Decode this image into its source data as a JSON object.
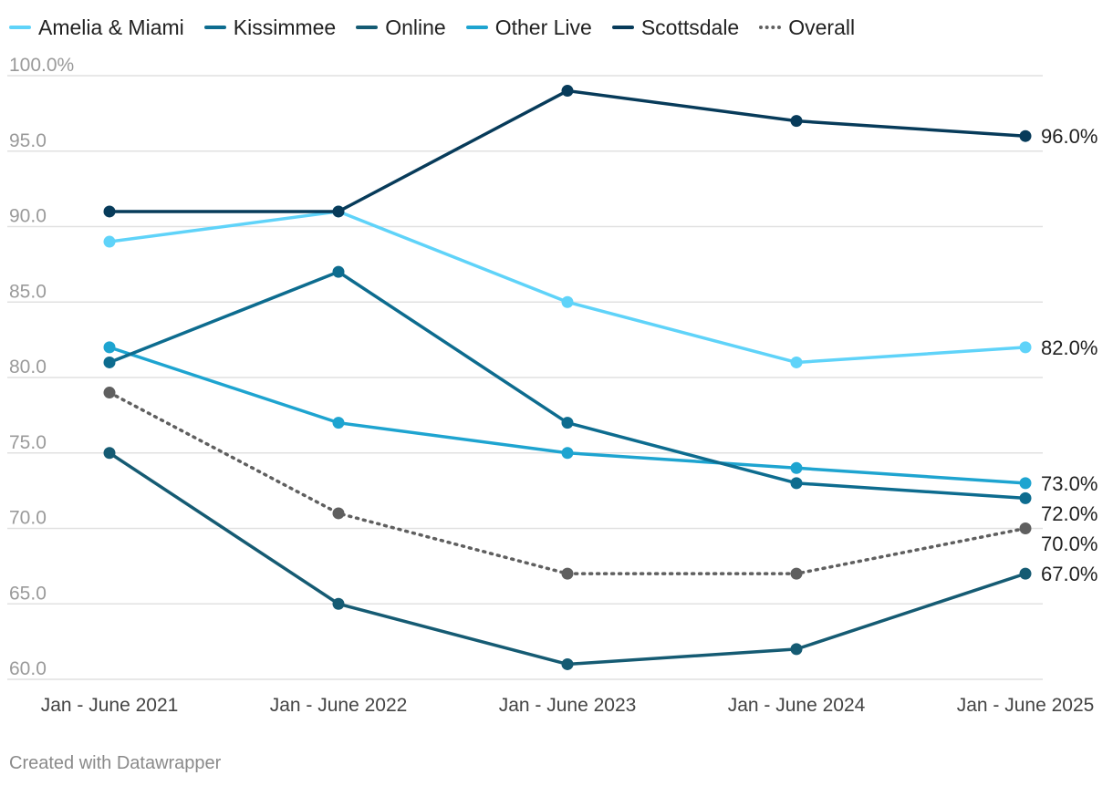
{
  "chart_data": {
    "type": "line",
    "x": [
      "Jan - June 2021",
      "Jan - June 2022",
      "Jan - June 2023",
      "Jan - June 2024",
      "Jan - June 2025"
    ],
    "ylim": [
      60,
      100
    ],
    "yticks": [
      "100.0%",
      "95.0",
      "90.0",
      "85.0",
      "80.0",
      "75.0",
      "70.0",
      "65.0",
      "60.0"
    ],
    "ytick_values": [
      100,
      95,
      90,
      85,
      80,
      75,
      70,
      65,
      60
    ],
    "grid": true,
    "legend_position": "top-left",
    "series": [
      {
        "name": "Amelia & Miami",
        "color": "#5fd3f9",
        "style": "solid",
        "values": [
          89,
          91,
          85,
          81,
          82
        ],
        "end_label": "82.0%"
      },
      {
        "name": "Kissimmee",
        "color": "#0d6c8f",
        "style": "solid",
        "values": [
          81,
          87,
          77,
          73,
          72
        ],
        "end_label": "72.0%"
      },
      {
        "name": "Online",
        "color": "#155b73",
        "style": "solid",
        "values": [
          75,
          65,
          61,
          62,
          67
        ],
        "end_label": "67.0%"
      },
      {
        "name": "Other Live",
        "color": "#1ea4d0",
        "style": "solid",
        "values": [
          82,
          77,
          75,
          74,
          73
        ],
        "end_label": "73.0%"
      },
      {
        "name": "Scottsdale",
        "color": "#073b5a",
        "style": "solid",
        "values": [
          91,
          91,
          99,
          97,
          96
        ],
        "end_label": "96.0%"
      },
      {
        "name": "Overall",
        "color": "#5f5f5f",
        "style": "dotted",
        "values": [
          79,
          71,
          67,
          67,
          70
        ],
        "end_label": "70.0%"
      }
    ]
  },
  "footer": {
    "text": "Created with Datawrapper"
  },
  "colors": {
    "grid": "#e1e1e1",
    "tick_text": "#9a9a9a",
    "x_tick_text": "#444444",
    "end_label_text": "#222222"
  }
}
